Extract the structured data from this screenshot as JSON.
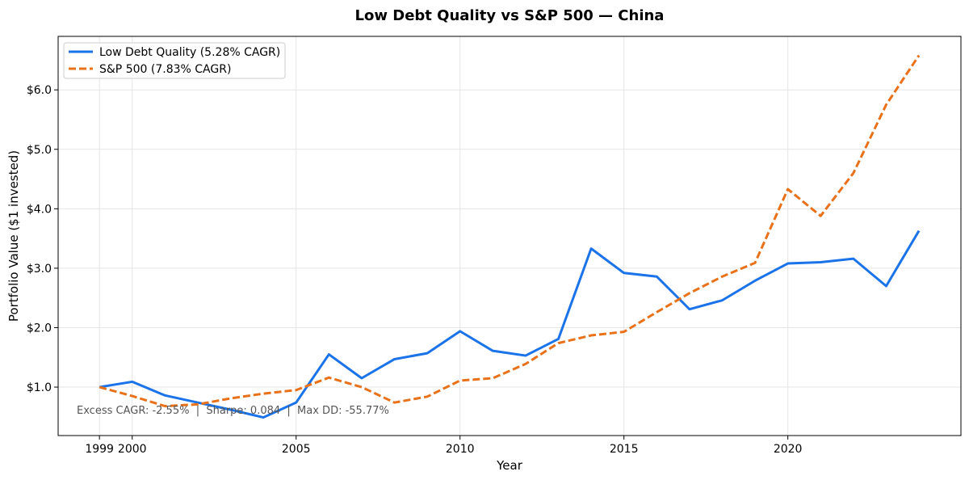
{
  "chart_data": {
    "type": "line",
    "title": "Low Debt Quality vs S&P 500 — China",
    "xlabel": "Year",
    "ylabel": "Portfolio Value ($1 invested)",
    "xlim": [
      1997.74,
      2025.28
    ],
    "ylim": [
      0.185,
      6.9
    ],
    "xticks": [
      1999,
      2000,
      2005,
      2010,
      2015,
      2020
    ],
    "yticks": [
      1.0,
      2.0,
      3.0,
      4.0,
      5.0,
      6.0
    ],
    "ytick_labels": [
      "$1.0",
      "$2.0",
      "$3.0",
      "$4.0",
      "$5.0",
      "$6.0"
    ],
    "grid": true,
    "legend_position": "top-left",
    "x": [
      1999,
      2000,
      2001,
      2002,
      2003,
      2004,
      2005,
      2006,
      2007,
      2008,
      2009,
      2010,
      2011,
      2012,
      2013,
      2014,
      2015,
      2016,
      2017,
      2018,
      2019,
      2020,
      2021,
      2022,
      2023,
      2024
    ],
    "series": [
      {
        "name": "Low Debt Quality (5.28% CAGR)",
        "color": "#1a73e8",
        "style": "solid",
        "values": [
          1.0,
          1.09,
          0.86,
          0.74,
          0.62,
          0.49,
          0.74,
          1.55,
          1.15,
          1.47,
          1.57,
          1.94,
          1.61,
          1.53,
          1.81,
          3.33,
          2.92,
          2.86,
          2.31,
          2.46,
          2.79,
          3.08,
          3.1,
          3.16,
          2.7,
          3.63
        ]
      },
      {
        "name": "S&P 500 (7.83% CAGR)",
        "color": "#e8711a",
        "style": "dashed",
        "values": [
          1.0,
          0.85,
          0.68,
          0.71,
          0.81,
          0.89,
          0.95,
          1.16,
          1.0,
          0.74,
          0.84,
          1.11,
          1.15,
          1.39,
          1.74,
          1.87,
          1.93,
          2.26,
          2.58,
          2.86,
          3.09,
          4.33,
          3.88,
          4.6,
          5.75,
          6.58
        ]
      }
    ],
    "annotation": "Excess CAGR: -2.55%  |  Sharpe: 0.084  |  Max DD: -55.77%"
  }
}
